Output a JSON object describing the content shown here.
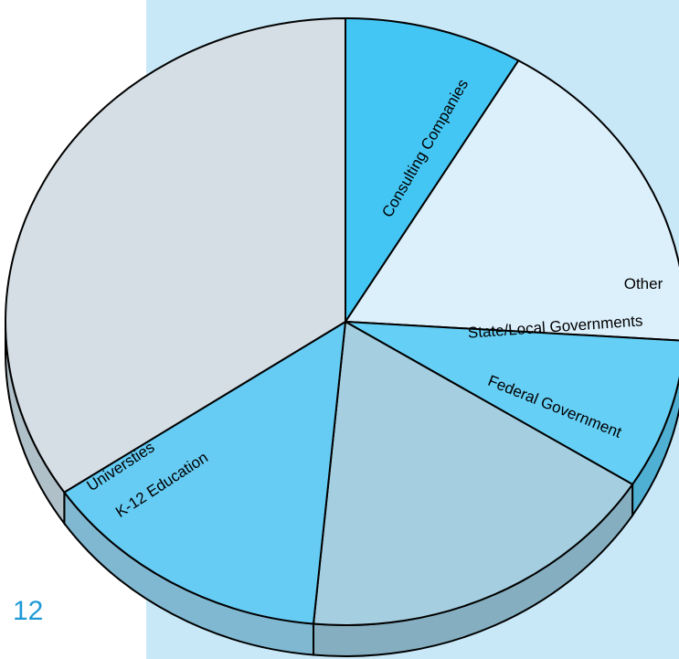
{
  "page_number": "12",
  "colors": {
    "background_panel": "#c8e8f8",
    "outline": "#000000",
    "page_number": "#1c9ad6"
  },
  "chart_data": {
    "type": "pie",
    "style": "3d",
    "title": "",
    "slices": [
      {
        "label": "Consulting Companies",
        "value": 8.5,
        "color": "#44c6f4",
        "side": "#3aa8d4"
      },
      {
        "label": "Other",
        "value": 17.5,
        "color": "#dcf0fb",
        "side": "#b9d2df"
      },
      {
        "label": "State/Local Governments",
        "value": 8.0,
        "color": "#66cff5",
        "side": "#4fb0d4"
      },
      {
        "label": "Federal Government",
        "value": 17.5,
        "color": "#a5cfe0",
        "side": "#85afc0"
      },
      {
        "label": "K-12 Education",
        "value": 14.0,
        "color": "#66ccf4",
        "side": "#80b8d2"
      },
      {
        "label": "Universties",
        "value": 34.5,
        "color": "#d4dee4",
        "side": "#b0c0c8"
      }
    ]
  }
}
